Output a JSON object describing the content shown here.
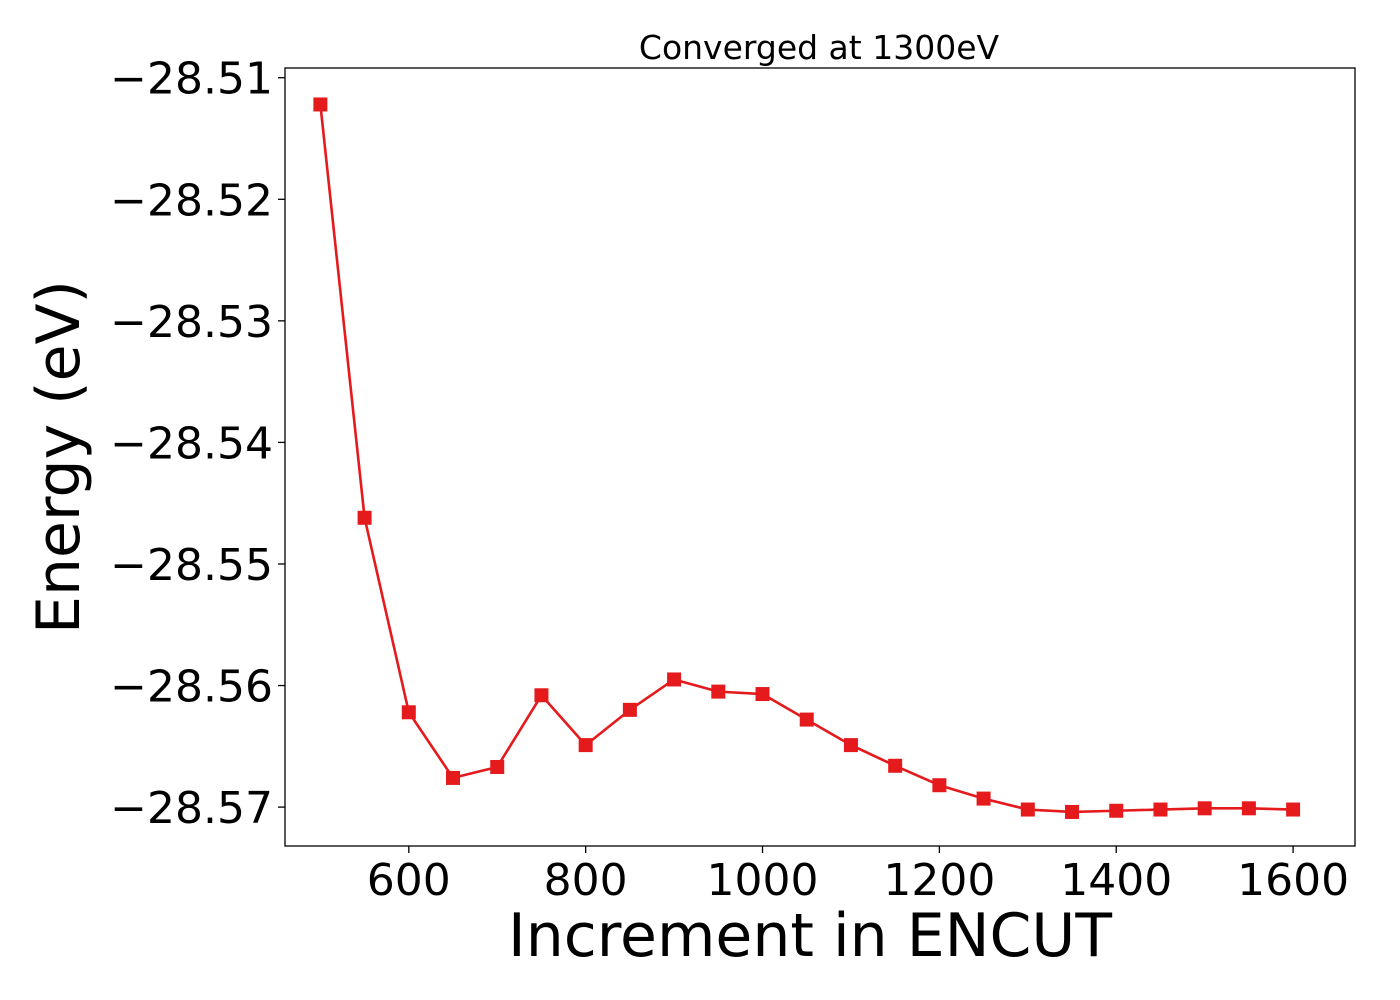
{
  "chart_data": {
    "type": "line",
    "title": "Converged at 1300eV",
    "xlabel": "Increment in ENCUT",
    "ylabel": "Energy (eV)",
    "xlim": [
      460,
      1670
    ],
    "ylim": [
      -28.5732,
      -28.5092
    ],
    "x_ticks": [
      600,
      800,
      1000,
      1200,
      1400,
      1600
    ],
    "x_tick_labels": [
      "600",
      "800",
      "1000",
      "1200",
      "1400",
      "1600"
    ],
    "y_ticks": [
      -28.51,
      -28.52,
      -28.53,
      -28.54,
      -28.55,
      -28.56,
      -28.57
    ],
    "y_tick_labels": [
      "−28.51",
      "−28.52",
      "−28.53",
      "−28.54",
      "−28.55",
      "−28.56",
      "−28.57"
    ],
    "grid": false,
    "series": [
      {
        "color": "#e41a1c",
        "marker": "square",
        "x": [
          500,
          550,
          600,
          650,
          700,
          750,
          800,
          850,
          900,
          950,
          1000,
          1050,
          1100,
          1150,
          1200,
          1250,
          1300,
          1350,
          1400,
          1450,
          1500,
          1550,
          1600
        ],
        "y": [
          -28.5122,
          -28.5462,
          -28.5622,
          -28.5676,
          -28.5667,
          -28.5608,
          -28.5649,
          -28.562,
          -28.5595,
          -28.5605,
          -28.5607,
          -28.5628,
          -28.5649,
          -28.5666,
          -28.5682,
          -28.5693,
          -28.5702,
          -28.5704,
          -28.5703,
          -28.5702,
          -28.5701,
          -28.5701,
          -28.5702
        ]
      }
    ]
  }
}
